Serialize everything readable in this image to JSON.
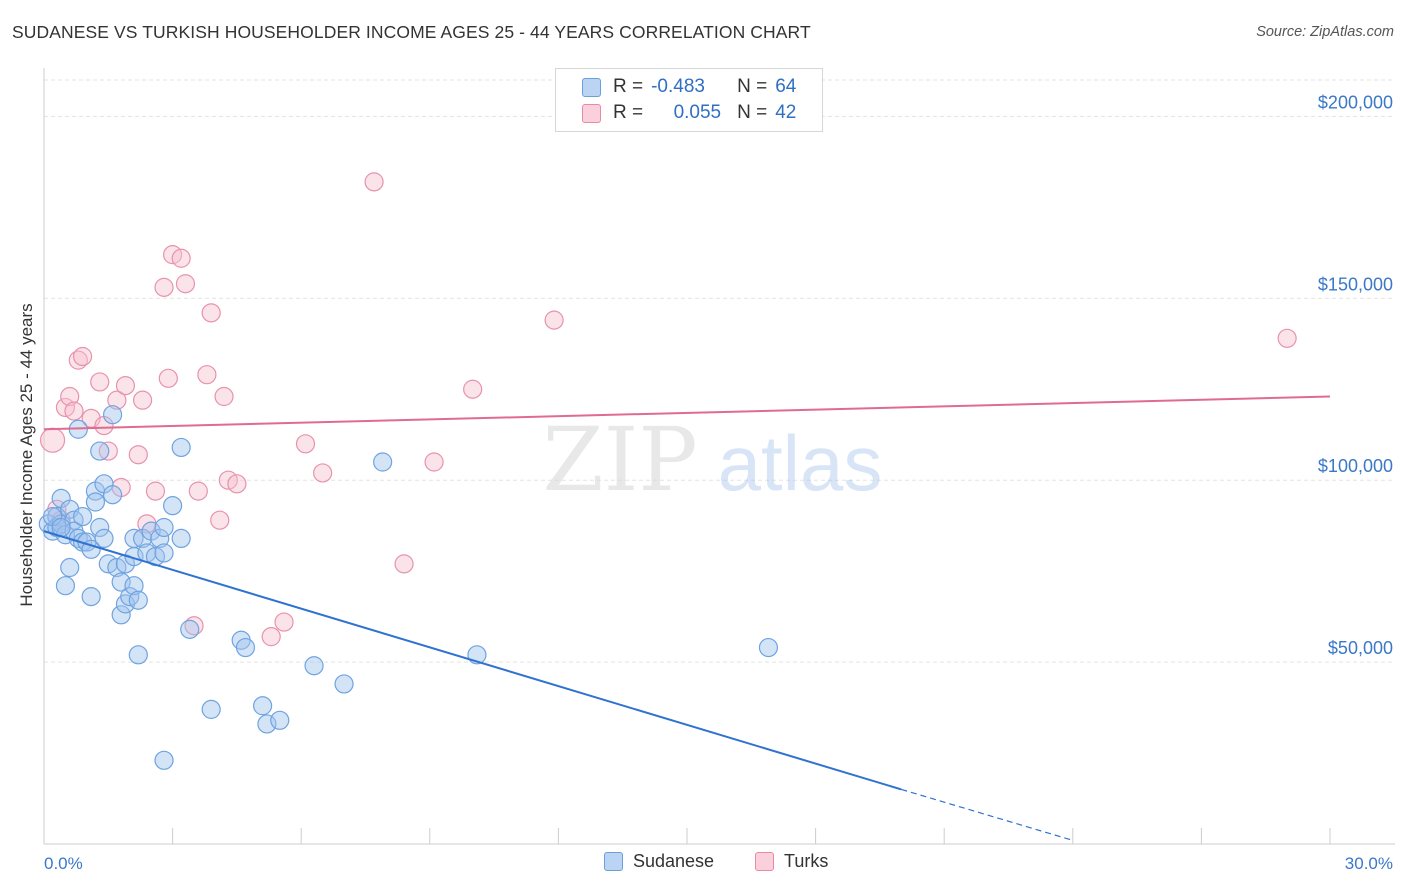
{
  "title": "SUDANESE VS TURKISH HOUSEHOLDER INCOME AGES 25 - 44 YEARS CORRELATION CHART",
  "source": "Source: ZipAtlas.com",
  "watermark": {
    "zip": "ZIP",
    "atlas": "atlas"
  },
  "legend": {
    "rows": [
      {
        "r_label": "R =",
        "r_value": "-0.483",
        "n_label": "N =",
        "n_value": "64",
        "color": "#9ec3ee",
        "border": "#6a9fdc"
      },
      {
        "r_label": "R =",
        "r_value": "0.055",
        "n_label": "N =",
        "n_value": "42",
        "color": "#f6c0d0",
        "border": "#e889a6"
      }
    ]
  },
  "bottom_legend": {
    "sudanese": "Sudanese",
    "turks": "Turks"
  },
  "chart_data": {
    "type": "scatter",
    "ylabel": "Householder Income Ages 25 - 44 years",
    "xlim": [
      0,
      30
    ],
    "ylim": [
      0,
      210000
    ],
    "x_tick_labels": [
      "0.0%",
      "30.0%"
    ],
    "y_ticks": [
      {
        "value": 50000,
        "label": "$50,000"
      },
      {
        "value": 100000,
        "label": "$100,000"
      },
      {
        "value": 150000,
        "label": "$150,000"
      },
      {
        "value": 200000,
        "label": "$200,000"
      }
    ],
    "grid": true,
    "series": [
      {
        "name": "Sudanese",
        "color": "#6fa3e0",
        "fill": "rgba(160,196,238,0.45)",
        "line_color": "#2f72d0",
        "trend": {
          "x0": 0,
          "y0": 86000,
          "x1": 20,
          "y1": 15000,
          "dash_x1": 24,
          "dash_y1": 1000
        },
        "points": [
          [
            0.1,
            88000
          ],
          [
            0.2,
            86000
          ],
          [
            0.3,
            90000
          ],
          [
            0.3,
            87000
          ],
          [
            0.4,
            95000
          ],
          [
            0.4,
            88000
          ],
          [
            0.5,
            85000
          ],
          [
            0.6,
            92000
          ],
          [
            0.7,
            89000
          ],
          [
            0.7,
            86000
          ],
          [
            0.8,
            84000
          ],
          [
            0.9,
            83000
          ],
          [
            0.5,
            71000
          ],
          [
            0.6,
            76000
          ],
          [
            0.8,
            114000
          ],
          [
            0.9,
            90000
          ],
          [
            1.0,
            83000
          ],
          [
            1.1,
            81000
          ],
          [
            1.1,
            68000
          ],
          [
            1.2,
            97000
          ],
          [
            1.2,
            94000
          ],
          [
            1.3,
            108000
          ],
          [
            1.3,
            87000
          ],
          [
            1.4,
            99000
          ],
          [
            1.4,
            84000
          ],
          [
            1.5,
            77000
          ],
          [
            1.6,
            96000
          ],
          [
            1.6,
            118000
          ],
          [
            1.7,
            76000
          ],
          [
            1.8,
            72000
          ],
          [
            1.8,
            63000
          ],
          [
            1.9,
            77000
          ],
          [
            1.9,
            66000
          ],
          [
            2.0,
            68000
          ],
          [
            2.1,
            84000
          ],
          [
            2.1,
            79000
          ],
          [
            2.1,
            71000
          ],
          [
            2.2,
            52000
          ],
          [
            2.2,
            67000
          ],
          [
            2.3,
            84000
          ],
          [
            2.4,
            80000
          ],
          [
            2.5,
            86000
          ],
          [
            2.6,
            79000
          ],
          [
            2.7,
            84000
          ],
          [
            2.8,
            87000
          ],
          [
            2.8,
            80000
          ],
          [
            2.8,
            23000
          ],
          [
            3.0,
            93000
          ],
          [
            3.2,
            109000
          ],
          [
            3.2,
            84000
          ],
          [
            3.4,
            59000
          ],
          [
            3.9,
            37000
          ],
          [
            4.6,
            56000
          ],
          [
            4.7,
            54000
          ],
          [
            5.1,
            38000
          ],
          [
            5.2,
            33000
          ],
          [
            5.5,
            34000
          ],
          [
            6.3,
            49000
          ],
          [
            7.0,
            44000
          ],
          [
            7.9,
            105000
          ],
          [
            10.1,
            52000
          ],
          [
            16.9,
            54000
          ],
          [
            0.2,
            90000
          ],
          [
            0.4,
            87000
          ]
        ]
      },
      {
        "name": "Turks",
        "color": "#e892ad",
        "fill": "rgba(246,192,208,0.45)",
        "line_color": "#e06b90",
        "trend": {
          "x0": 0,
          "y0": 114000,
          "x1": 30,
          "y1": 123000
        },
        "points": [
          [
            0.2,
            111000
          ],
          [
            0.3,
            92000
          ],
          [
            0.4,
            89000
          ],
          [
            0.5,
            120000
          ],
          [
            0.6,
            123000
          ],
          [
            0.7,
            119000
          ],
          [
            0.8,
            133000
          ],
          [
            0.9,
            134000
          ],
          [
            1.1,
            117000
          ],
          [
            1.3,
            127000
          ],
          [
            1.4,
            115000
          ],
          [
            1.5,
            108000
          ],
          [
            1.7,
            122000
          ],
          [
            1.8,
            98000
          ],
          [
            1.9,
            126000
          ],
          [
            2.2,
            107000
          ],
          [
            2.3,
            122000
          ],
          [
            2.4,
            88000
          ],
          [
            2.6,
            97000
          ],
          [
            2.8,
            153000
          ],
          [
            2.9,
            128000
          ],
          [
            3.0,
            162000
          ],
          [
            3.2,
            161000
          ],
          [
            3.3,
            154000
          ],
          [
            3.6,
            97000
          ],
          [
            3.8,
            129000
          ],
          [
            3.9,
            146000
          ],
          [
            4.1,
            89000
          ],
          [
            4.2,
            123000
          ],
          [
            4.3,
            100000
          ],
          [
            4.5,
            99000
          ],
          [
            3.5,
            60000
          ],
          [
            5.3,
            57000
          ],
          [
            5.6,
            61000
          ],
          [
            6.1,
            110000
          ],
          [
            6.5,
            102000
          ],
          [
            7.7,
            182000
          ],
          [
            8.4,
            77000
          ],
          [
            9.1,
            105000
          ],
          [
            10.0,
            125000
          ],
          [
            11.9,
            144000
          ],
          [
            29.0,
            139000
          ]
        ]
      }
    ]
  }
}
